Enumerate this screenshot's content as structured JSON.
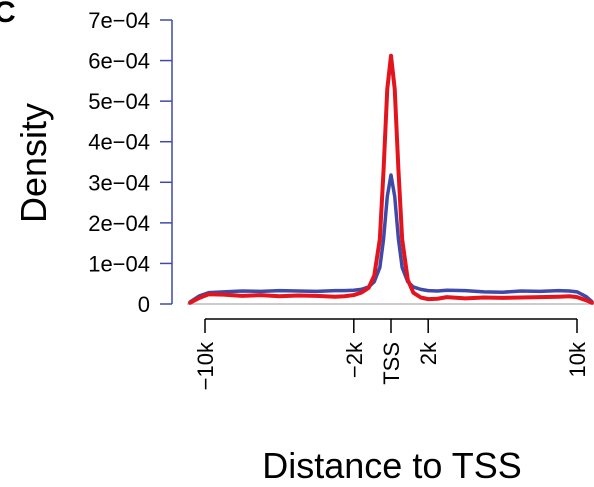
{
  "panel_label": "C",
  "chart_data": {
    "type": "line",
    "xlabel": "Distance to TSS",
    "ylabel": "Density",
    "xlim": [
      -10000,
      10000
    ],
    "ylim": [
      0,
      0.0007
    ],
    "x_ticks": [
      {
        "value": -10000,
        "label": "−10k"
      },
      {
        "value": -2000,
        "label": "−2k"
      },
      {
        "value": 0,
        "label": "TSS"
      },
      {
        "value": 2000,
        "label": "2k"
      },
      {
        "value": 10000,
        "label": "10k"
      }
    ],
    "y_ticks": [
      {
        "value": 0,
        "label": "0"
      },
      {
        "value": 0.0001,
        "label": "1e−04"
      },
      {
        "value": 0.0002,
        "label": "2e−04"
      },
      {
        "value": 0.0003,
        "label": "3e−04"
      },
      {
        "value": 0.0004,
        "label": "4e−04"
      },
      {
        "value": 0.0005,
        "label": "5e−04"
      },
      {
        "value": 0.0006,
        "label": "6e−04"
      },
      {
        "value": 0.0007,
        "label": "7e−04"
      }
    ],
    "grid": false,
    "zero_line_color": "#bbbbbb",
    "series": [
      {
        "color": "#3f4aa8",
        "x": [
          -10800,
          -10300,
          -9800,
          -9000,
          -8000,
          -7000,
          -6000,
          -5000,
          -4000,
          -3000,
          -2500,
          -2000,
          -1600,
          -1200,
          -900,
          -600,
          -400,
          -200,
          0,
          200,
          400,
          600,
          900,
          1200,
          1600,
          2000,
          2500,
          3000,
          4000,
          5000,
          6000,
          7000,
          8000,
          9000,
          9600,
          10000,
          10500,
          10800
        ],
        "y": [
          5e-06,
          2e-05,
          2.8e-05,
          3e-05,
          3.2e-05,
          3.1e-05,
          3.3e-05,
          3.2e-05,
          3.1e-05,
          3.3e-05,
          3.3e-05,
          3.4e-05,
          3.6e-05,
          4.2e-05,
          5.5e-05,
          9e-05,
          0.00016,
          0.000265,
          0.000318,
          0.000265,
          0.00016,
          9e-05,
          5.5e-05,
          4.2e-05,
          3.6e-05,
          3.3e-05,
          3.2e-05,
          3.4e-05,
          3.3e-05,
          3e-05,
          2.9e-05,
          3.2e-05,
          3.1e-05,
          3.3e-05,
          3.2e-05,
          3e-05,
          1.8e-05,
          6e-06
        ]
      },
      {
        "color": "#e3141c",
        "x": [
          -10800,
          -10300,
          -9800,
          -9000,
          -8000,
          -7000,
          -6000,
          -5000,
          -4000,
          -3000,
          -2500,
          -2000,
          -1600,
          -1200,
          -900,
          -600,
          -400,
          -200,
          0,
          200,
          400,
          600,
          900,
          1200,
          1600,
          2000,
          2500,
          3000,
          4000,
          5000,
          6000,
          7000,
          8000,
          9000,
          9600,
          10000,
          10500,
          10800
        ],
        "y": [
          3e-06,
          1.5e-05,
          2.4e-05,
          2.3e-05,
          2e-05,
          2.2e-05,
          1.9e-05,
          2.1e-05,
          2e-05,
          1.8e-05,
          1.9e-05,
          2.2e-05,
          2.8e-05,
          4e-05,
          7e-05,
          0.00016,
          0.00033,
          0.00053,
          0.000612,
          0.00053,
          0.00033,
          0.00016,
          6e-05,
          2.8e-05,
          1.6e-05,
          1.2e-05,
          1.3e-05,
          1.7e-05,
          1.4e-05,
          1.6e-05,
          1.5e-05,
          1.6e-05,
          1.7e-05,
          1.8e-05,
          1.9e-05,
          1.7e-05,
          9e-06,
          3e-06
        ]
      }
    ]
  }
}
